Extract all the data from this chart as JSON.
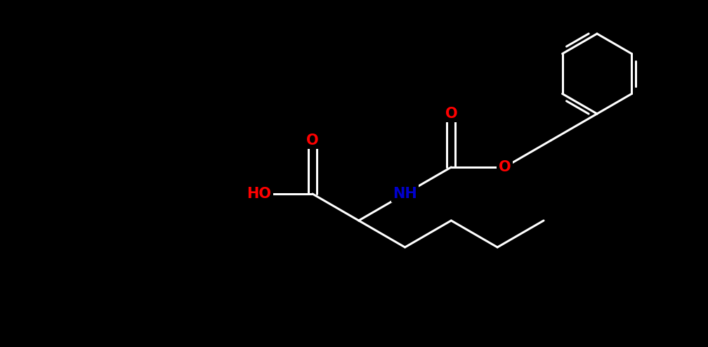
{
  "background_color": "#000000",
  "bond_color": "#ffffff",
  "atom_colors": {
    "O": "#ff0000",
    "N": "#0000cd",
    "C": "#ffffff",
    "H": "#ffffff"
  },
  "bond_width": 2.2,
  "font_size_atoms": 15,
  "fig_width": 10.08,
  "fig_height": 4.94,
  "dpi": 100
}
